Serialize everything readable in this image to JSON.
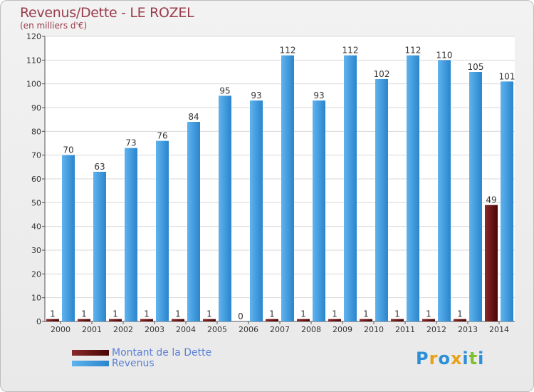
{
  "chart_data": {
    "type": "bar",
    "title": "Revenus/Dette - LE ROZEL",
    "subtitle": "(en milliers d'€)",
    "categories": [
      "2000",
      "2001",
      "2002",
      "2003",
      "2004",
      "2005",
      "2006",
      "2007",
      "2008",
      "2009",
      "2010",
      "2011",
      "2012",
      "2013",
      "2014"
    ],
    "series": [
      {
        "name": "Montant de la Dette",
        "values": [
          1,
          1,
          1,
          1,
          1,
          1,
          0,
          1,
          1,
          1,
          1,
          1,
          1,
          1,
          49
        ],
        "color": "#6b1212"
      },
      {
        "name": "Revenus",
        "values": [
          70,
          63,
          73,
          76,
          84,
          95,
          93,
          112,
          93,
          112,
          102,
          112,
          110,
          105,
          101
        ],
        "color": "#3a96d9"
      }
    ],
    "ylim": [
      0,
      120
    ],
    "yticks": [
      0,
      10,
      20,
      30,
      40,
      50,
      60,
      70,
      80,
      90,
      100,
      110,
      120
    ],
    "grid": true,
    "legend": "bottom-left"
  },
  "logo": {
    "letters": [
      "P",
      "r",
      "o",
      "x",
      "i",
      "t",
      "i"
    ],
    "colors": [
      "#2b8fd8",
      "#e8a21a",
      "#2b8fd8",
      "#e8a21a",
      "#2b8fd8",
      "#7cc12c",
      "#2b8fd8"
    ]
  }
}
